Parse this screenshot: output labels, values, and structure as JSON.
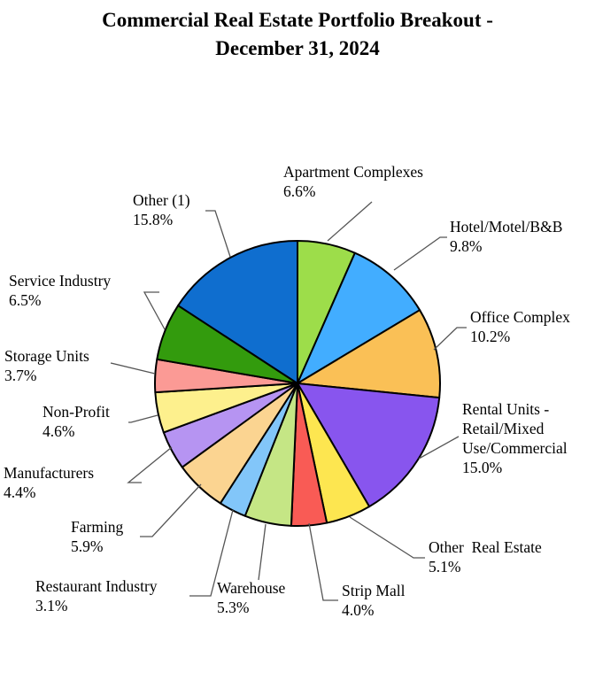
{
  "chart_data": {
    "type": "pie",
    "title_lines": [
      "Commercial Real Estate Portfolio Breakout -",
      "December 31, 2024"
    ],
    "slices": [
      {
        "label": [
          "Apartment Complexes"
        ],
        "pct_text": "6.6%",
        "value": 6.6,
        "color": "#9ddd4a"
      },
      {
        "label": [
          "Hotel/Motel/B&B"
        ],
        "pct_text": "9.8%",
        "value": 9.8,
        "color": "#42adff"
      },
      {
        "label": [
          "Office Complex"
        ],
        "pct_text": "10.2%",
        "value": 10.2,
        "color": "#fac056"
      },
      {
        "label": [
          "Rental Units -",
          "Retail/Mixed",
          "Use/Commercial"
        ],
        "pct_text": "15.0%",
        "value": 15.0,
        "color": "#8855ee"
      },
      {
        "label": [
          "Other  Real Estate"
        ],
        "pct_text": "5.1%",
        "value": 5.1,
        "color": "#fde650"
      },
      {
        "label": [
          "Strip Mall"
        ],
        "pct_text": "4.0%",
        "value": 4.0,
        "color": "#f95b55"
      },
      {
        "label": [
          "Warehouse"
        ],
        "pct_text": "5.3%",
        "value": 5.3,
        "color": "#c5e685"
      },
      {
        "label": [
          "Restaurant Industry"
        ],
        "pct_text": "3.1%",
        "value": 3.1,
        "color": "#82c6f9"
      },
      {
        "label": [
          "Farming"
        ],
        "pct_text": "5.9%",
        "value": 5.9,
        "color": "#fbd491"
      },
      {
        "label": [
          "Manufacturers"
        ],
        "pct_text": "4.4%",
        "value": 4.4,
        "color": "#b694f2"
      },
      {
        "label": [
          "Non-Profit"
        ],
        "pct_text": "4.6%",
        "value": 4.6,
        "color": "#fdf08d"
      },
      {
        "label": [
          "Storage Units"
        ],
        "pct_text": "3.7%",
        "value": 3.7,
        "color": "#fb9a95"
      },
      {
        "label": [
          "Service Industry"
        ],
        "pct_text": "6.5%",
        "value": 6.5,
        "color": "#339b0d"
      },
      {
        "label": [
          "Other (1)"
        ],
        "pct_text": "15.8%",
        "value": 15.8,
        "color": "#0f6ecf"
      }
    ]
  }
}
